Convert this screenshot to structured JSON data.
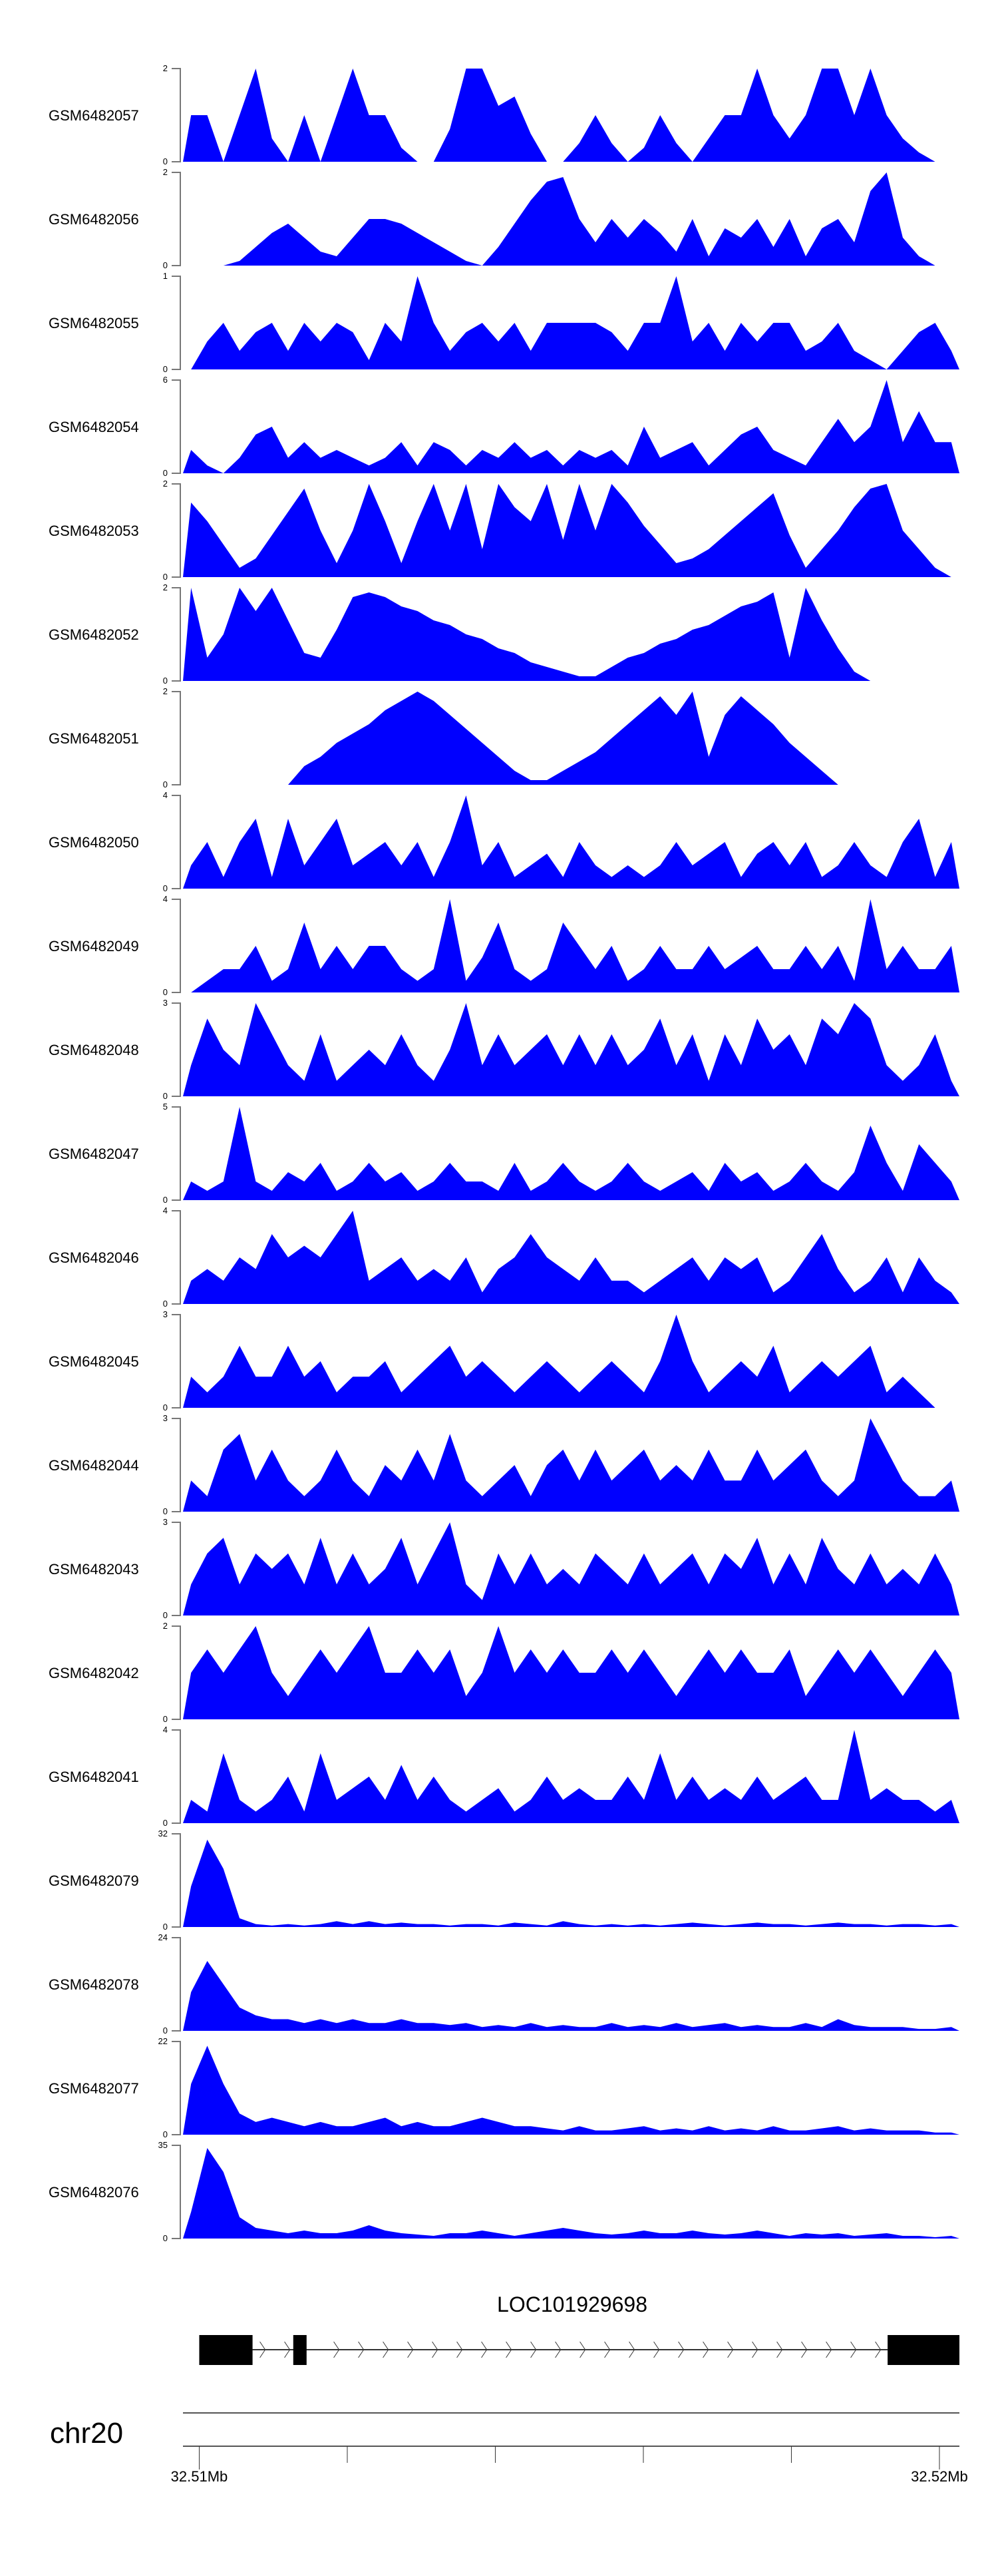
{
  "chart_data": {
    "type": "area",
    "fill_color": "#0000FF",
    "chromosome": "chr20",
    "x_range_bp": [
      32509780,
      32520270
    ],
    "bins_per_track": 48,
    "tracks": [
      {
        "name": "GSM6482057",
        "ymax": 2,
        "values": [
          1,
          1,
          0,
          1,
          2,
          0.5,
          0,
          1,
          0,
          1,
          2,
          1,
          1,
          0.3,
          0,
          0,
          0.7,
          2,
          2,
          1.2,
          1.4,
          0.6,
          0,
          0,
          0.4,
          1,
          0.4,
          0,
          0.3,
          1,
          0.4,
          0,
          0.5,
          1,
          1,
          2,
          1,
          0.5,
          1,
          2,
          2,
          1,
          2,
          1,
          0.5,
          0.2,
          0,
          0
        ]
      },
      {
        "name": "GSM6482056",
        "ymax": 2,
        "values": [
          0,
          0,
          0,
          0.1,
          0.4,
          0.7,
          0.9,
          0.6,
          0.3,
          0.2,
          0.6,
          1,
          1,
          0.9,
          0.7,
          0.5,
          0.3,
          0.1,
          0,
          0.4,
          0.9,
          1.4,
          1.8,
          1.9,
          1,
          0.5,
          1,
          0.6,
          1,
          0.7,
          0.3,
          1,
          0.2,
          0.8,
          0.6,
          1,
          0.4,
          1,
          0.2,
          0.8,
          1,
          0.5,
          1.6,
          2,
          0.6,
          0.2,
          0,
          0
        ]
      },
      {
        "name": "GSM6482055",
        "ymax": 1,
        "values": [
          0,
          0.3,
          0.5,
          0.2,
          0.4,
          0.5,
          0.2,
          0.5,
          0.3,
          0.5,
          0.4,
          0.1,
          0.5,
          0.3,
          1,
          0.5,
          0.2,
          0.4,
          0.5,
          0.3,
          0.5,
          0.2,
          0.5,
          0.5,
          0.5,
          0.5,
          0.4,
          0.2,
          0.5,
          0.5,
          1,
          0.3,
          0.5,
          0.2,
          0.5,
          0.3,
          0.5,
          0.5,
          0.2,
          0.3,
          0.5,
          0.2,
          0.1,
          0,
          0.2,
          0.4,
          0.5,
          0.2
        ]
      },
      {
        "name": "GSM6482054",
        "ymax": 6,
        "values": [
          1.5,
          0.5,
          0,
          1,
          2.5,
          3,
          1,
          2,
          1,
          1.5,
          1,
          0.5,
          1,
          2,
          0.5,
          2,
          1.5,
          0.5,
          1.5,
          1,
          2,
          1,
          1.5,
          0.5,
          1.5,
          1,
          1.5,
          0.5,
          3,
          1,
          1.5,
          2,
          0.5,
          1.5,
          2.5,
          3,
          1.5,
          1,
          0.5,
          2,
          3.5,
          2,
          3,
          6,
          2,
          4,
          2,
          2
        ]
      },
      {
        "name": "GSM6482053",
        "ymax": 2,
        "values": [
          1.6,
          1.2,
          0.7,
          0.2,
          0.4,
          0.9,
          1.4,
          1.9,
          1,
          0.3,
          1,
          2,
          1.2,
          0.3,
          1.2,
          2,
          1,
          2,
          0.6,
          2,
          1.5,
          1.2,
          2,
          0.8,
          2,
          1,
          2,
          1.6,
          1.1,
          0.7,
          0.3,
          0.4,
          0.6,
          0.9,
          1.2,
          1.5,
          1.8,
          0.9,
          0.2,
          0.6,
          1,
          1.5,
          1.9,
          2,
          1,
          0.6,
          0.2,
          0
        ]
      },
      {
        "name": "GSM6482052",
        "ymax": 2,
        "values": [
          2,
          0.5,
          1,
          2,
          1.5,
          2,
          1.3,
          0.6,
          0.5,
          1.1,
          1.8,
          1.9,
          1.8,
          1.6,
          1.5,
          1.3,
          1.2,
          1,
          0.9,
          0.7,
          0.6,
          0.4,
          0.3,
          0.2,
          0.1,
          0.1,
          0.3,
          0.5,
          0.6,
          0.8,
          0.9,
          1.1,
          1.2,
          1.4,
          1.6,
          1.7,
          1.9,
          0.5,
          2,
          1.3,
          0.7,
          0.2,
          0,
          0,
          0,
          0,
          0,
          0
        ]
      },
      {
        "name": "GSM6482051",
        "ymax": 2,
        "values": [
          0,
          0,
          0,
          0,
          0,
          0,
          0,
          0.4,
          0.6,
          0.9,
          1.1,
          1.3,
          1.6,
          1.8,
          2,
          1.8,
          1.5,
          1.2,
          0.9,
          0.6,
          0.3,
          0.1,
          0.1,
          0.3,
          0.5,
          0.7,
          1,
          1.3,
          1.6,
          1.9,
          1.5,
          2,
          0.6,
          1.5,
          1.9,
          1.6,
          1.3,
          0.9,
          0.6,
          0.3,
          0,
          0,
          0,
          0,
          0,
          0,
          0,
          0
        ]
      },
      {
        "name": "GSM6482050",
        "ymax": 4,
        "values": [
          1,
          2,
          0.5,
          2,
          3,
          0.5,
          3,
          1,
          2,
          3,
          1,
          1.5,
          2,
          1,
          2,
          0.5,
          2,
          4,
          1,
          2,
          0.5,
          1,
          1.5,
          0.5,
          2,
          1,
          0.5,
          1,
          0.5,
          1,
          2,
          1,
          1.5,
          2,
          0.5,
          1.5,
          2,
          1,
          2,
          0.5,
          1,
          2,
          1,
          0.5,
          2,
          3,
          0.5,
          2
        ]
      },
      {
        "name": "GSM6482049",
        "ymax": 4,
        "values": [
          0,
          0.5,
          1,
          1,
          2,
          0.5,
          1,
          3,
          1,
          2,
          1,
          2,
          2,
          1,
          0.5,
          1,
          4,
          0.5,
          1.5,
          3,
          1,
          0.5,
          1,
          3,
          2,
          1,
          2,
          0.5,
          1,
          2,
          1,
          1,
          2,
          1,
          1.5,
          2,
          1,
          1,
          2,
          1,
          2,
          0.5,
          4,
          1,
          2,
          1,
          1,
          2
        ]
      },
      {
        "name": "GSM6482048",
        "ymax": 3,
        "values": [
          1,
          2.5,
          1.5,
          1,
          3,
          2,
          1,
          0.5,
          2,
          0.5,
          1,
          1.5,
          1,
          2,
          1,
          0.5,
          1.5,
          3,
          1,
          2,
          1,
          1.5,
          2,
          1,
          2,
          1,
          2,
          1,
          1.5,
          2.5,
          1,
          2,
          0.5,
          2,
          1,
          2.5,
          1.5,
          2,
          1,
          2.5,
          2,
          3,
          2.5,
          1,
          0.5,
          1,
          2,
          0.5
        ]
      },
      {
        "name": "GSM6482047",
        "ymax": 5,
        "values": [
          1,
          0.5,
          1,
          5,
          1,
          0.5,
          1.5,
          1,
          2,
          0.5,
          1,
          2,
          1,
          1.5,
          0.5,
          1,
          2,
          1,
          1,
          0.5,
          2,
          0.5,
          1,
          2,
          1,
          0.5,
          1,
          2,
          1,
          0.5,
          1,
          1.5,
          0.5,
          2,
          1,
          1.5,
          0.5,
          1,
          2,
          1,
          0.5,
          1.5,
          4,
          2,
          0.5,
          3,
          2,
          1
        ]
      },
      {
        "name": "GSM6482046",
        "ymax": 4,
        "values": [
          1,
          1.5,
          1,
          2,
          1.5,
          3,
          2,
          2.5,
          2,
          3,
          4,
          1,
          1.5,
          2,
          1,
          1.5,
          1,
          2,
          0.5,
          1.5,
          2,
          3,
          2,
          1.5,
          1,
          2,
          1,
          1,
          0.5,
          1,
          1.5,
          2,
          1,
          2,
          1.5,
          2,
          0.5,
          1,
          2,
          3,
          1.5,
          0.5,
          1,
          2,
          0.5,
          2,
          1,
          0.5
        ]
      },
      {
        "name": "GSM6482045",
        "ymax": 3,
        "values": [
          1,
          0.5,
          1,
          2,
          1,
          1,
          2,
          1,
          1.5,
          0.5,
          1,
          1,
          1.5,
          0.5,
          1,
          1.5,
          2,
          1,
          1.5,
          1,
          0.5,
          1,
          1.5,
          1,
          0.5,
          1,
          1.5,
          1,
          0.5,
          1.5,
          3,
          1.5,
          0.5,
          1,
          1.5,
          1,
          2,
          0.5,
          1,
          1.5,
          1,
          1.5,
          2,
          0.5,
          1,
          0.5,
          0,
          0
        ]
      },
      {
        "name": "GSM6482044",
        "ymax": 3,
        "values": [
          1,
          0.5,
          2,
          2.5,
          1,
          2,
          1,
          0.5,
          1,
          2,
          1,
          0.5,
          1.5,
          1,
          2,
          1,
          2.5,
          1,
          0.5,
          1,
          1.5,
          0.5,
          1.5,
          2,
          1,
          2,
          1,
          1.5,
          2,
          1,
          1.5,
          1,
          2,
          1,
          1,
          2,
          1,
          1.5,
          2,
          1,
          0.5,
          1,
          3,
          2,
          1,
          0.5,
          0.5,
          1
        ]
      },
      {
        "name": "GSM6482043",
        "ymax": 3,
        "values": [
          1,
          2,
          2.5,
          1,
          2,
          1.5,
          2,
          1,
          2.5,
          1,
          2,
          1,
          1.5,
          2.5,
          1,
          2,
          3,
          1,
          0.5,
          2,
          1,
          2,
          1,
          1.5,
          1,
          2,
          1.5,
          1,
          2,
          1,
          1.5,
          2,
          1,
          2,
          1.5,
          2.5,
          1,
          2,
          1,
          2.5,
          1.5,
          1,
          2,
          1,
          1.5,
          1,
          2,
          1
        ]
      },
      {
        "name": "GSM6482042",
        "ymax": 2,
        "values": [
          1,
          1.5,
          1,
          1.5,
          2,
          1,
          0.5,
          1,
          1.5,
          1,
          1.5,
          2,
          1,
          1,
          1.5,
          1,
          1.5,
          0.5,
          1,
          2,
          1,
          1.5,
          1,
          1.5,
          1,
          1,
          1.5,
          1,
          1.5,
          1,
          0.5,
          1,
          1.5,
          1,
          1.5,
          1,
          1,
          1.5,
          0.5,
          1,
          1.5,
          1,
          1.5,
          1,
          0.5,
          1,
          1.5,
          1
        ]
      },
      {
        "name": "GSM6482041",
        "ymax": 4,
        "values": [
          1,
          0.5,
          3,
          1,
          0.5,
          1,
          2,
          0.5,
          3,
          1,
          1.5,
          2,
          1,
          2.5,
          1,
          2,
          1,
          0.5,
          1,
          1.5,
          0.5,
          1,
          2,
          1,
          1.5,
          1,
          1,
          2,
          1,
          3,
          1,
          2,
          1,
          1.5,
          1,
          2,
          1,
          1.5,
          2,
          1,
          1,
          4,
          1,
          1.5,
          1,
          1,
          0.5,
          1
        ]
      },
      {
        "name": "GSM6482079",
        "ymax": 32,
        "values": [
          14,
          30,
          20,
          3,
          1,
          0.5,
          1,
          0.5,
          1,
          2,
          1,
          2,
          1,
          1.5,
          1,
          1,
          0.5,
          1,
          1,
          0.5,
          1.5,
          1,
          0.5,
          2,
          1,
          0.5,
          1,
          0.5,
          1,
          0.5,
          1,
          1.5,
          1,
          0.5,
          1,
          1.5,
          1,
          1,
          0.5,
          1,
          1.5,
          1,
          1,
          0.5,
          1,
          1,
          0.5,
          1
        ]
      },
      {
        "name": "GSM6482078",
        "ymax": 24,
        "values": [
          10,
          18,
          12,
          6,
          4,
          3,
          3,
          2,
          3,
          2,
          3,
          2,
          2,
          3,
          2,
          2,
          1.5,
          2,
          1,
          1.5,
          1,
          2,
          1,
          1.5,
          1,
          1,
          2,
          1,
          1.5,
          1,
          2,
          1,
          1.5,
          2,
          1,
          1.5,
          1,
          1,
          2,
          1,
          3,
          1.5,
          1,
          1,
          1,
          0.5,
          0.5,
          1
        ]
      },
      {
        "name": "GSM6482077",
        "ymax": 22,
        "values": [
          12,
          21,
          12,
          5,
          3,
          4,
          3,
          2,
          3,
          2,
          2,
          3,
          4,
          2,
          3,
          2,
          2,
          3,
          4,
          3,
          2,
          2,
          1.5,
          1,
          2,
          1,
          1,
          1.5,
          2,
          1,
          1.5,
          1,
          2,
          1,
          1.5,
          1,
          2,
          1,
          1,
          1.5,
          2,
          1,
          1.5,
          1,
          1,
          1,
          0.5,
          0.5
        ]
      },
      {
        "name": "GSM6482076",
        "ymax": 35,
        "values": [
          10,
          34,
          25,
          8,
          4,
          3,
          2,
          3,
          2,
          2,
          3,
          5,
          3,
          2,
          1.5,
          1,
          2,
          2,
          3,
          2,
          1,
          2,
          3,
          4,
          3,
          2,
          1.5,
          2,
          3,
          2,
          2,
          3,
          2,
          1.5,
          2,
          3,
          2,
          1,
          2,
          1.5,
          2,
          1,
          1.5,
          2,
          1,
          1,
          0.5,
          1
        ]
      }
    ],
    "gene": {
      "name": "LOC101929698",
      "strand": "+",
      "exons_bp": [
        [
          32510000,
          32510720
        ],
        [
          32511270,
          32511450
        ],
        [
          32519300,
          32520270
        ]
      ]
    },
    "axis": {
      "ticks_mb": [
        32.51,
        32.512,
        32.514,
        32.516,
        32.518,
        32.52
      ],
      "labels": [
        {
          "mb": 32.51,
          "text": "32.51Mb"
        },
        {
          "mb": 32.52,
          "text": "32.52Mb"
        }
      ]
    }
  }
}
